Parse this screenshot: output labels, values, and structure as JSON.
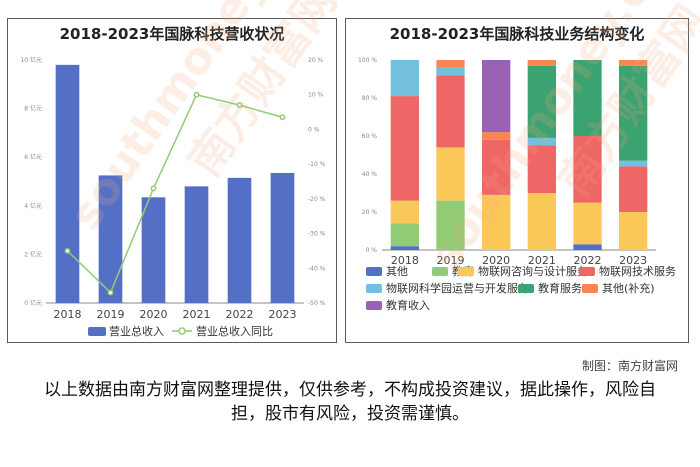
{
  "chart_data": [
    {
      "type": "bar+line",
      "title": "2018-2023年国脉科技营收状况",
      "categories": [
        "2018",
        "2019",
        "2020",
        "2021",
        "2022",
        "2023"
      ],
      "bar_series": {
        "name": "营业总收入",
        "values": [
          9.8,
          5.25,
          4.35,
          4.8,
          5.15,
          5.35
        ],
        "color": "#5470c6"
      },
      "line_series": {
        "name": "营业总收入同比",
        "values": [
          -35,
          -47,
          -17,
          10,
          7,
          3.5
        ],
        "color": "#91cc75"
      },
      "y_left": {
        "min": 0,
        "max": 10,
        "ticks": [
          "0 亿元",
          "2 亿元",
          "4 亿元",
          "6 亿元",
          "8 亿元",
          "10 亿元"
        ]
      },
      "y_right": {
        "min": -50,
        "max": 20,
        "ticks": [
          "-50 %",
          "-40 %",
          "-30 %",
          "-20 %",
          "-10 %",
          "0 %",
          "10 %",
          "20 %"
        ]
      },
      "legend_position": "bottom"
    },
    {
      "type": "stacked-bar",
      "title": "2018-2023年国脉科技业务结构变化",
      "categories": [
        "2018",
        "2019",
        "2020",
        "2021",
        "2022",
        "2023"
      ],
      "yticks": [
        "0 %",
        "20 %",
        "40 %",
        "60 %",
        "80 %",
        "100 %"
      ],
      "series": [
        {
          "name": "其他",
          "color": "#5470c6",
          "values": [
            2,
            0,
            0,
            0,
            3,
            0
          ]
        },
        {
          "name": "教育",
          "color": "#91cc75",
          "values": [
            12,
            26,
            0,
            0,
            0,
            0
          ]
        },
        {
          "name": "物联网咨询与设计服务",
          "color": "#fac858",
          "values": [
            12,
            28,
            29,
            30,
            22,
            20
          ]
        },
        {
          "name": "物联网技术服务",
          "color": "#ee6666",
          "values": [
            55,
            38,
            29,
            25,
            35,
            24
          ]
        },
        {
          "name": "物联网科学园运营与开发服务",
          "color": "#73c0de",
          "values": [
            19,
            4,
            0,
            4,
            0,
            3
          ]
        },
        {
          "name": "教育服务",
          "color": "#3ba272",
          "values": [
            0,
            0,
            0,
            38,
            40,
            50
          ]
        },
        {
          "name": "其他(补充)",
          "color": "#fc8452",
          "values": [
            0,
            4,
            4,
            3,
            0,
            3
          ]
        },
        {
          "name": "教育收入",
          "color": "#9a60b4",
          "values": [
            0,
            0,
            38,
            0,
            0,
            0
          ]
        }
      ],
      "legend_position": "bottom"
    }
  ],
  "watermark": {
    "text": "南方财富网",
    "url_text": "southmoney.com"
  },
  "credit": "制图：南方财富网",
  "disclaimer": "以上数据由南方财富网整理提供，仅供参考，不构成投资建议，据此操作，风险自担，股市有风险，投资需谨慎。"
}
